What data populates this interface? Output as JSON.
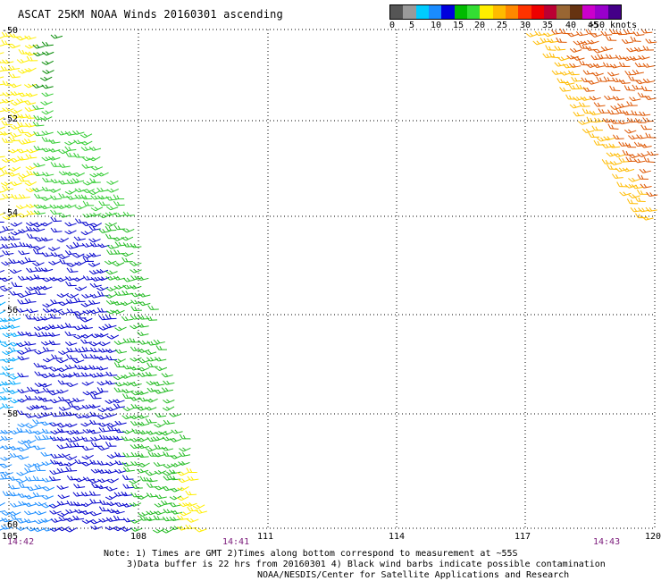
{
  "title": "ASCAT 25KM NOAA Winds 20160301 ascending",
  "scale": {
    "labels": [
      "0",
      "5",
      "10",
      "15",
      "20",
      "25",
      "30",
      "35",
      "40",
      "45",
      ">50 knots"
    ],
    "colors": [
      "#555555",
      "#9a9a9a",
      "#00ccff",
      "#1a8cff",
      "#0000dd",
      "#00bb00",
      "#33dd33",
      "#ffee00",
      "#ffbb00",
      "#ff8800",
      "#ff3300",
      "#ee0000",
      "#bb0033",
      "#996633",
      "#663311",
      "#cc00cc",
      "#9900cc",
      "#440088"
    ]
  },
  "map": {
    "lon_labels": [
      "105",
      "108",
      "111",
      "114",
      "117",
      "120"
    ],
    "lat_labels": [
      "-50",
      "-52",
      "-54",
      "-56",
      "-58",
      "-60"
    ],
    "times": [
      "14:42",
      "14:41",
      "14:43"
    ]
  },
  "notes": {
    "line1": "Note: 1) Times are GMT 2)Times along bottom correspond to measurement at ~55S",
    "line2": "3)Data buffer is 22 hrs from 20160301 4) Black wind barbs indicate possible contamination",
    "line3": "NOAA/NESDIS/Center for Satellite Applications and Research"
  }
}
